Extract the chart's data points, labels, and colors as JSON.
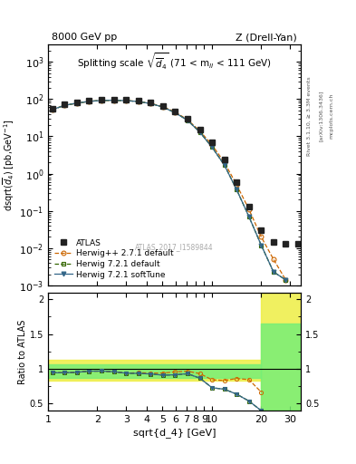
{
  "title_left": "8000 GeV pp",
  "title_right": "Z (Drell-Yan)",
  "plot_title": "Splitting scale $\\sqrt{\\overline{d}_{4}}$ (71 < m$_{ll}$ < 111 GeV)",
  "ylabel_main": "d$\\sigma$\ndsqrt($\\overline{d}_{4}$) [pb,GeV$^{-1}$]",
  "ylabel_ratio": "Ratio to ATLAS",
  "xlabel": "sqrt{d_4} [GeV]",
  "watermark": "ATLAS_2017_I1589844",
  "right_label1": "Rivet 3.1.10, ≥ 3.3M events",
  "right_label2": "[arXiv:1306.3436]",
  "right_label3": "mcplots.cern.ch",
  "atlas_x": [
    1.06,
    1.26,
    1.5,
    1.78,
    2.12,
    2.52,
    3.0,
    3.56,
    4.23,
    5.03,
    5.98,
    7.11,
    8.45,
    10.04,
    11.94,
    14.19,
    16.87,
    20.05,
    23.83,
    28.32,
    33.67
  ],
  "atlas_y": [
    55,
    72,
    82,
    90,
    95,
    97,
    97,
    92,
    82,
    67,
    47,
    29,
    15,
    7.0,
    2.4,
    0.58,
    0.13,
    0.03,
    0.015,
    0.013,
    0.013
  ],
  "hpp_x": [
    1.06,
    1.26,
    1.5,
    1.78,
    2.12,
    2.52,
    3.0,
    3.56,
    4.23,
    5.03,
    5.98,
    7.11,
    8.45,
    10.04,
    11.94,
    14.19,
    16.87,
    20.05,
    23.83,
    28.32
  ],
  "hpp_y": [
    52,
    68,
    78,
    87,
    92,
    93,
    91,
    87,
    77,
    63,
    45,
    28,
    14,
    5.9,
    2.0,
    0.5,
    0.11,
    0.02,
    0.005,
    0.0014
  ],
  "h721d_x": [
    1.06,
    1.26,
    1.5,
    1.78,
    2.12,
    2.52,
    3.0,
    3.56,
    4.23,
    5.03,
    5.98,
    7.11,
    8.45,
    10.04,
    11.94,
    14.19,
    16.87,
    20.05,
    23.83,
    28.32
  ],
  "h721d_y": [
    52,
    68,
    78,
    87,
    92,
    93,
    91,
    86,
    76,
    61,
    43,
    27,
    13,
    5.1,
    1.7,
    0.37,
    0.07,
    0.012,
    0.0023,
    0.0014
  ],
  "h721s_x": [
    1.06,
    1.26,
    1.5,
    1.78,
    2.12,
    2.52,
    3.0,
    3.56,
    4.23,
    5.03,
    5.98,
    7.11,
    8.45,
    10.04,
    11.94,
    14.19,
    16.87,
    20.05,
    23.83,
    28.32
  ],
  "h721s_y": [
    52,
    68,
    78,
    87,
    92,
    93,
    91,
    86,
    76,
    61,
    43,
    27,
    13,
    5.1,
    1.7,
    0.37,
    0.07,
    0.012,
    0.0023,
    0.0014
  ],
  "ratio_hpp_x": [
    1.06,
    1.26,
    1.5,
    1.78,
    2.12,
    2.52,
    3.0,
    3.56,
    4.23,
    5.03,
    5.98,
    7.11,
    8.45,
    10.04,
    11.94,
    14.19,
    16.87,
    20.05
  ],
  "ratio_hpp_y": [
    0.945,
    0.944,
    0.951,
    0.967,
    0.968,
    0.959,
    0.938,
    0.946,
    0.939,
    0.94,
    0.957,
    0.966,
    0.933,
    0.843,
    0.833,
    0.862,
    0.846,
    0.667
  ],
  "ratio_h721d_x": [
    1.06,
    1.26,
    1.5,
    1.78,
    2.12,
    2.52,
    3.0,
    3.56,
    4.23,
    5.03,
    5.98,
    7.11,
    8.45,
    10.04,
    11.94,
    14.19,
    16.87,
    20.05
  ],
  "ratio_h721d_y": [
    0.945,
    0.944,
    0.951,
    0.967,
    0.968,
    0.959,
    0.938,
    0.935,
    0.927,
    0.91,
    0.915,
    0.931,
    0.867,
    0.729,
    0.708,
    0.638,
    0.538,
    0.4
  ],
  "ratio_h721s_x": [
    1.06,
    1.26,
    1.5,
    1.78,
    2.12,
    2.52,
    3.0,
    3.56,
    4.23,
    5.03,
    5.98,
    7.11,
    8.45,
    10.04,
    11.94,
    14.19,
    16.87,
    20.05
  ],
  "ratio_h721s_y": [
    0.945,
    0.944,
    0.951,
    0.967,
    0.968,
    0.959,
    0.938,
    0.935,
    0.927,
    0.91,
    0.915,
    0.931,
    0.867,
    0.729,
    0.708,
    0.636,
    0.538,
    0.4
  ],
  "color_atlas": "#222222",
  "color_hpp": "#cc6600",
  "color_h721d": "#336600",
  "color_h721s": "#336688",
  "xlim": [
    1.0,
    35.0
  ],
  "ylim_main": [
    0.001,
    3000.0
  ],
  "ylim_ratio": [
    0.4,
    2.1
  ]
}
